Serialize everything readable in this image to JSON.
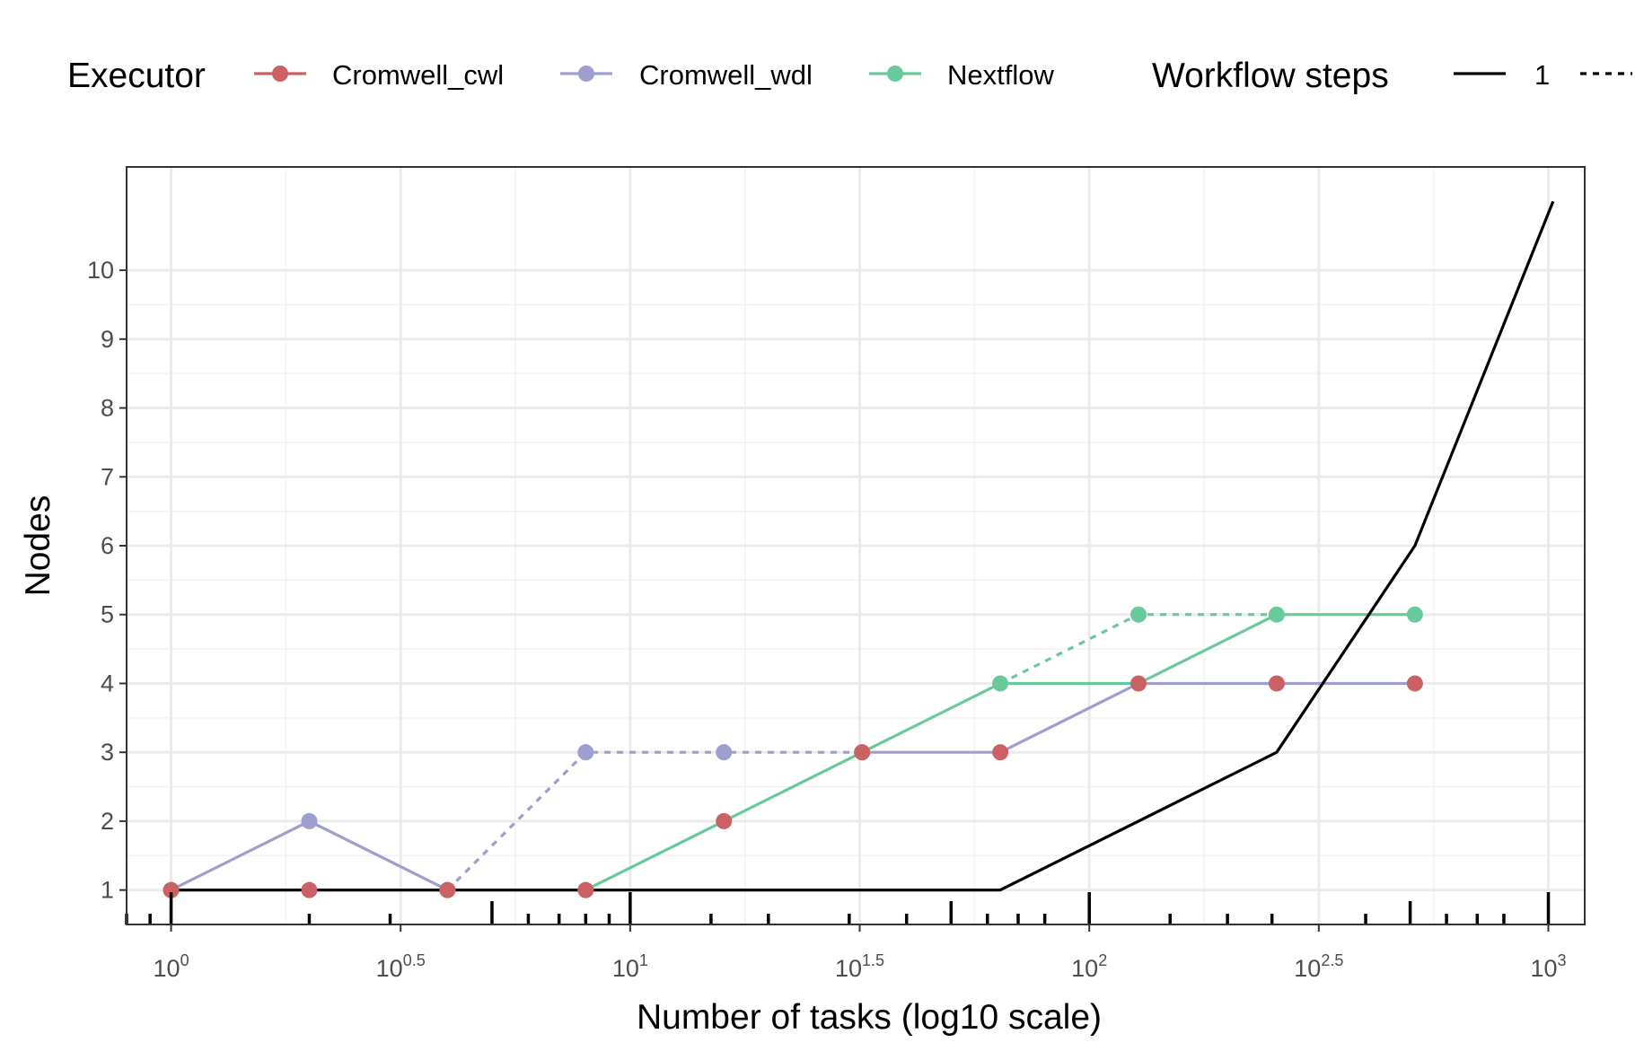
{
  "chart_data": {
    "type": "line",
    "xlabel": "Number of tasks (log10 scale)",
    "ylabel": "Nodes",
    "x_scale": "log10",
    "xlim": [
      0.8,
      1200
    ],
    "ylim": [
      0.5,
      11.5
    ],
    "x_ticks": [
      {
        "base": "10",
        "exp": "0",
        "value": 1
      },
      {
        "base": "10",
        "exp": "0.5",
        "value": 3.162
      },
      {
        "base": "10",
        "exp": "1",
        "value": 10
      },
      {
        "base": "10",
        "exp": "1.5",
        "value": 31.62
      },
      {
        "base": "10",
        "exp": "2",
        "value": 100
      },
      {
        "base": "10",
        "exp": "2.5",
        "value": 316.2
      },
      {
        "base": "10",
        "exp": "3",
        "value": 1000
      }
    ],
    "y_ticks": [
      "1",
      "2",
      "3",
      "4",
      "5",
      "6",
      "7",
      "8",
      "9",
      "10"
    ],
    "y_tick_values": [
      1,
      2,
      3,
      4,
      5,
      6,
      7,
      8,
      9,
      10
    ],
    "grid": true,
    "legend_placement": "top",
    "legend": {
      "executor_title": "Executor",
      "executor_items": [
        {
          "label": "Cromwell_cwl",
          "color": "#cc6163"
        },
        {
          "label": "Cromwell_wdl",
          "color": "#9f9fcf"
        },
        {
          "label": "Nextflow",
          "color": "#68c99a"
        }
      ],
      "steps_title": "Workflow steps",
      "steps_items": [
        {
          "label": "1",
          "dash": "solid"
        },
        {
          "label": "",
          "dash": "dotted"
        }
      ]
    },
    "series": [
      {
        "executor": "Cromwell_wdl",
        "steps": "1",
        "color": "#9f9fcf",
        "dash": "solid",
        "markers": true,
        "points": [
          [
            1,
            1
          ],
          [
            2,
            2
          ],
          [
            4,
            1
          ]
        ]
      },
      {
        "executor": "Cromwell_wdl",
        "steps": "dotted",
        "color": "#9f9fcf",
        "dash": "dotted",
        "markers": true,
        "points": [
          [
            4,
            1
          ],
          [
            8,
            3
          ],
          [
            16,
            3
          ],
          [
            32,
            3
          ]
        ]
      },
      {
        "executor": "Cromwell_wdl",
        "steps": "1",
        "color": "#9f9fcf",
        "dash": "solid",
        "markers": false,
        "points": [
          [
            32,
            3
          ],
          [
            64,
            3
          ],
          [
            128,
            4
          ],
          [
            256,
            4
          ],
          [
            512,
            4
          ]
        ]
      },
      {
        "executor": "Nextflow",
        "steps": "1",
        "color": "#68c99a",
        "dash": "solid",
        "markers": false,
        "points": [
          [
            8,
            1
          ],
          [
            16,
            2
          ],
          [
            32,
            3
          ],
          [
            64,
            4
          ],
          [
            128,
            4
          ],
          [
            256,
            5
          ],
          [
            512,
            5
          ]
        ]
      },
      {
        "executor": "Nextflow",
        "steps": "dotted",
        "color": "#68c99a",
        "dash": "dotted",
        "markers": false,
        "points": [
          [
            64,
            4
          ],
          [
            128,
            5
          ],
          [
            256,
            5
          ]
        ]
      },
      {
        "executor": "Black",
        "steps": "1",
        "color": "#000000",
        "dash": "solid",
        "markers": false,
        "points": [
          [
            1,
            1
          ],
          [
            64,
            1
          ],
          [
            256,
            3
          ],
          [
            512,
            6
          ],
          [
            1024,
            11
          ]
        ]
      },
      {
        "executor": "Nextflow",
        "steps": "points",
        "color": "#68c99a",
        "dash": "none",
        "markers": true,
        "points": [
          [
            8,
            1
          ],
          [
            64,
            4
          ],
          [
            128,
            5
          ],
          [
            256,
            5
          ],
          [
            512,
            5
          ]
        ]
      },
      {
        "executor": "Cromwell_cwl",
        "steps": "points",
        "color": "#cc6163",
        "dash": "none",
        "markers": true,
        "points": [
          [
            1,
            1
          ],
          [
            2,
            1
          ],
          [
            4,
            1
          ],
          [
            8,
            1
          ],
          [
            16,
            2
          ],
          [
            32,
            3
          ],
          [
            64,
            3
          ],
          [
            128,
            4
          ],
          [
            256,
            4
          ],
          [
            512,
            4
          ]
        ]
      }
    ],
    "rug_x": [
      0.8,
      0.9,
      1,
      2,
      3,
      5,
      6,
      7,
      8,
      9,
      10,
      15,
      20,
      30,
      40,
      50,
      60,
      70,
      80,
      100,
      150,
      200,
      250,
      400,
      500,
      600,
      700,
      800,
      1000
    ]
  }
}
